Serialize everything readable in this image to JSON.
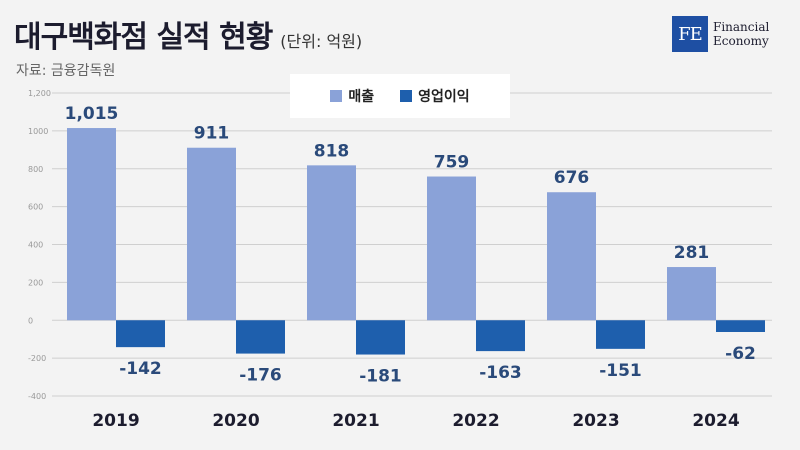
{
  "header": {
    "title": "대구백화점 실적 현황",
    "unit": "(단위: 억원)",
    "source": "자료: 금융감독원"
  },
  "logo": {
    "mark": "FE",
    "line1": "Financial",
    "line2": "Economy"
  },
  "colors": {
    "sales": "#8aa2d8",
    "operating_profit": "#1e5fad",
    "label": "#2a4a7a",
    "grid": "#cfcfcf"
  },
  "chart_data": {
    "type": "bar",
    "categories": [
      "2019",
      "2020",
      "2021",
      "2022",
      "2023",
      "2024"
    ],
    "series": [
      {
        "name": "매출",
        "values": [
          1015,
          911,
          818,
          759,
          676,
          281
        ],
        "labels": [
          "1,015",
          "911",
          "818",
          "759",
          "676",
          "281"
        ]
      },
      {
        "name": "영업이익",
        "values": [
          -142,
          -176,
          -181,
          -163,
          -151,
          -62
        ],
        "labels": [
          "-142",
          "-176",
          "-181",
          "-163",
          "-151",
          "-62"
        ]
      }
    ],
    "ylim": [
      -400,
      1200
    ],
    "yticks": [
      -400,
      -200,
      0,
      200,
      400,
      600,
      800,
      1000,
      1200
    ],
    "ytick_labels": [
      "-400",
      "-200",
      "0",
      "200",
      "400",
      "600",
      "800",
      "1000",
      "1,200"
    ],
    "grid": true,
    "legend": "top-center"
  }
}
